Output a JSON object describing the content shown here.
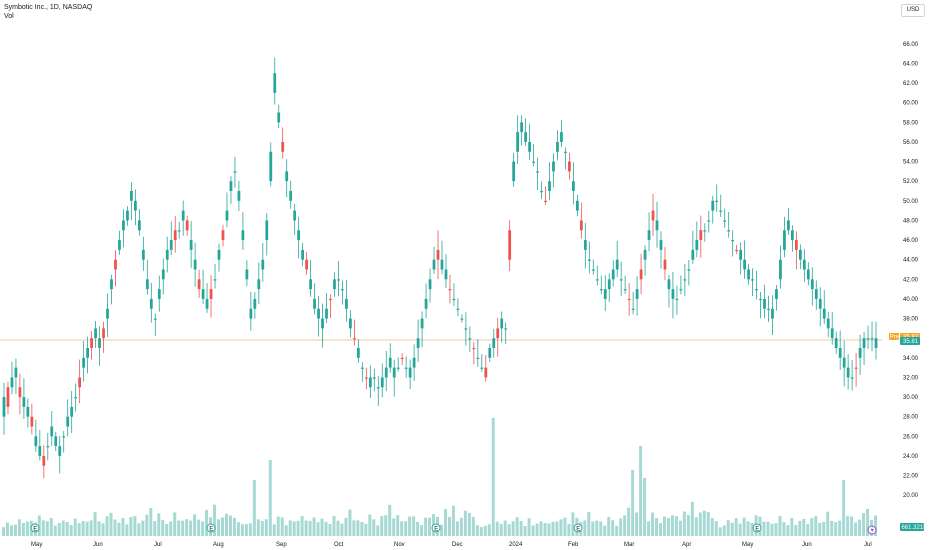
{
  "header": {
    "title": "Symbotic Inc., 1D, NASDAQ",
    "volume_label": "Vol"
  },
  "currency": "USD",
  "price_badges": {
    "pre_label": "Pre",
    "pre_value": "35.82",
    "last_value": "35.81"
  },
  "volume_badge": "661.321K",
  "colors": {
    "up": "#26a69a",
    "down": "#ef5350",
    "vol_up": "#a6d9d3",
    "vol_down": "#f7b7b4",
    "pre_badge": "#f5a623",
    "last_badge": "#26a69a",
    "price_line": "#f0c9a3"
  },
  "chart_data": {
    "type": "candlestick",
    "title": "Symbotic Inc., 1D, NASDAQ",
    "currency": "USD",
    "x_ticks": [
      "May",
      "Jun",
      "Jul",
      "Aug",
      "Sep",
      "Oct",
      "Nov",
      "Dec",
      "2024",
      "Feb",
      "Mar",
      "Apr",
      "May",
      "Jun",
      "Jul"
    ],
    "y_ticks": [
      "20.00",
      "22.00",
      "24.00",
      "26.00",
      "28.00",
      "30.00",
      "32.00",
      "34.00",
      "36.00",
      "38.00",
      "40.00",
      "42.00",
      "44.00",
      "46.00",
      "48.00",
      "50.00",
      "52.00",
      "54.00",
      "56.00",
      "58.00",
      "60.00",
      "62.00",
      "64.00",
      "66.00"
    ],
    "ylim": [
      19,
      67
    ],
    "last_price": 35.81,
    "pre_market_price": 35.82,
    "event_markers": [
      "E",
      "E",
      "E",
      "E",
      "E"
    ],
    "close_path": [
      [
        28,
        30
      ],
      [
        29,
        31
      ],
      [
        31,
        32
      ],
      [
        32,
        33
      ],
      [
        30,
        31
      ],
      [
        29,
        30
      ],
      [
        28,
        29
      ],
      [
        27,
        28
      ],
      [
        25,
        26
      ],
      [
        24,
        25
      ],
      [
        23,
        24
      ],
      [
        25,
        25
      ],
      [
        26,
        27
      ],
      [
        25,
        26
      ],
      [
        24,
        25
      ],
      [
        26,
        26
      ],
      [
        27,
        28
      ],
      [
        28,
        29
      ],
      [
        30,
        30
      ],
      [
        31,
        32
      ],
      [
        33,
        34
      ],
      [
        34,
        35
      ],
      [
        35,
        36
      ],
      [
        36,
        37
      ],
      [
        35,
        36
      ],
      [
        36,
        37
      ],
      [
        38,
        39
      ],
      [
        41,
        42
      ],
      [
        43,
        44
      ],
      [
        45,
        46
      ],
      [
        47,
        48
      ],
      [
        48,
        49
      ],
      [
        50,
        51
      ],
      [
        49,
        50
      ],
      [
        47,
        48
      ],
      [
        44,
        45
      ],
      [
        41,
        42
      ],
      [
        39,
        40
      ],
      [
        38,
        38
      ],
      [
        40,
        41
      ],
      [
        42,
        43
      ],
      [
        44,
        45
      ],
      [
        45,
        46
      ],
      [
        46,
        47
      ],
      [
        47,
        47
      ],
      [
        48,
        49
      ],
      [
        47,
        48
      ],
      [
        45,
        46
      ],
      [
        43,
        44
      ],
      [
        41,
        42
      ],
      [
        40,
        41
      ],
      [
        39,
        40
      ],
      [
        40,
        41
      ],
      [
        42,
        42
      ],
      [
        44,
        45
      ],
      [
        46,
        47
      ],
      [
        48,
        49
      ],
      [
        51,
        52
      ],
      [
        53,
        53
      ],
      [
        50,
        51
      ],
      [
        46,
        47
      ],
      [
        42,
        43
      ],
      [
        38,
        39
      ],
      [
        39,
        40
      ],
      [
        41,
        42
      ],
      [
        43,
        44
      ],
      [
        46,
        48
      ],
      [
        52,
        55
      ],
      [
        61,
        63
      ],
      [
        58,
        59
      ],
      [
        55,
        56
      ],
      [
        52,
        53
      ],
      [
        50,
        51
      ],
      [
        48,
        49
      ],
      [
        46,
        47
      ],
      [
        44,
        45
      ],
      [
        43,
        44
      ],
      [
        41,
        42
      ],
      [
        39,
        40
      ],
      [
        38,
        39
      ],
      [
        37,
        38
      ],
      [
        38,
        39
      ],
      [
        40,
        40
      ],
      [
        41,
        42
      ],
      [
        42,
        42
      ],
      [
        41,
        41
      ],
      [
        39,
        40
      ],
      [
        37,
        38
      ],
      [
        36,
        36
      ],
      [
        34,
        35
      ],
      [
        33,
        33
      ],
      [
        32,
        32
      ],
      [
        31,
        32
      ],
      [
        32,
        32
      ],
      [
        31,
        31
      ],
      [
        31,
        32
      ],
      [
        32,
        33
      ],
      [
        33,
        34
      ],
      [
        32,
        33
      ],
      [
        33,
        33
      ],
      [
        34,
        34
      ],
      [
        33,
        33
      ],
      [
        32,
        33
      ],
      [
        33,
        34
      ],
      [
        35,
        36
      ],
      [
        37,
        38
      ],
      [
        39,
        40
      ],
      [
        41,
        42
      ],
      [
        43,
        44
      ],
      [
        44,
        45
      ],
      [
        43,
        44
      ],
      [
        42,
        43
      ],
      [
        41,
        41
      ],
      [
        40,
        40
      ],
      [
        39,
        39
      ],
      [
        38,
        38
      ],
      [
        37,
        37
      ],
      [
        36,
        36
      ],
      [
        35,
        35
      ],
      [
        34,
        34
      ],
      [
        33,
        33
      ],
      [
        32,
        33
      ],
      [
        34,
        35
      ],
      [
        35,
        36
      ],
      [
        36,
        37
      ],
      [
        37,
        38
      ],
      [
        37,
        37
      ],
      [
        44,
        47
      ],
      [
        52,
        54
      ],
      [
        55,
        57
      ],
      [
        57,
        58
      ],
      [
        56,
        57
      ],
      [
        55,
        56
      ],
      [
        54,
        54
      ],
      [
        53,
        53
      ],
      [
        51,
        51
      ],
      [
        50,
        50
      ],
      [
        51,
        52
      ],
      [
        53,
        54
      ],
      [
        55,
        56
      ],
      [
        56,
        57
      ],
      [
        55,
        55
      ],
      [
        53,
        54
      ],
      [
        51,
        52
      ],
      [
        49,
        50
      ],
      [
        47,
        48
      ],
      [
        45,
        46
      ],
      [
        44,
        44
      ],
      [
        43,
        43
      ],
      [
        42,
        42
      ],
      [
        41,
        41
      ],
      [
        40,
        41
      ],
      [
        41,
        42
      ],
      [
        42,
        43
      ],
      [
        43,
        44
      ],
      [
        42,
        42
      ],
      [
        41,
        41
      ],
      [
        40,
        40
      ],
      [
        39,
        39
      ],
      [
        40,
        41
      ],
      [
        42,
        43
      ],
      [
        44,
        45
      ],
      [
        46,
        47
      ],
      [
        48,
        49
      ],
      [
        47,
        48
      ],
      [
        45,
        46
      ],
      [
        43,
        44
      ],
      [
        41,
        42
      ],
      [
        40,
        41
      ],
      [
        40,
        40
      ],
      [
        41,
        41
      ],
      [
        42,
        42
      ],
      [
        43,
        43
      ],
      [
        44,
        45
      ],
      [
        45,
        46
      ],
      [
        46,
        47
      ],
      [
        47,
        47
      ],
      [
        48,
        48
      ],
      [
        49,
        50
      ],
      [
        50,
        50
      ],
      [
        49,
        49
      ],
      [
        48,
        48
      ],
      [
        47,
        47
      ],
      [
        46,
        46
      ],
      [
        45,
        45
      ],
      [
        44,
        45
      ],
      [
        43,
        44
      ],
      [
        42,
        43
      ],
      [
        42,
        42
      ],
      [
        41,
        41
      ],
      [
        40,
        40
      ],
      [
        39,
        40
      ],
      [
        39,
        39
      ],
      [
        38,
        39
      ],
      [
        40,
        41
      ],
      [
        42,
        44
      ],
      [
        45,
        47
      ],
      [
        47,
        48
      ],
      [
        46,
        47
      ],
      [
        45,
        46
      ],
      [
        44,
        45
      ],
      [
        43,
        44
      ],
      [
        42,
        43
      ],
      [
        41,
        42
      ],
      [
        40,
        41
      ],
      [
        39,
        40
      ],
      [
        38,
        39
      ],
      [
        37,
        38
      ],
      [
        36,
        37
      ],
      [
        35,
        36
      ],
      [
        34,
        35
      ],
      [
        33,
        34
      ],
      [
        32,
        33
      ],
      [
        32,
        32
      ],
      [
        33,
        33
      ],
      [
        34,
        35
      ],
      [
        35,
        36
      ],
      [
        36,
        36
      ],
      [
        36,
        36
      ],
      [
        35,
        36
      ]
    ],
    "volume_path": [
      [
        0,
        1,
        1,
        1,
        2,
        1,
        2,
        1,
        1,
        3,
        2,
        1,
        2,
        1,
        1,
        2,
        1,
        1,
        2,
        1,
        2,
        2,
        1,
        3,
        2,
        1,
        2,
        4,
        2,
        1
      ],
      [
        2,
        1,
        3,
        2,
        1,
        2,
        3,
        5,
        2,
        3,
        2,
        1,
        2,
        3,
        2,
        1,
        2,
        2,
        3,
        2,
        1,
        4,
        3,
        6,
        2,
        3,
        4,
        3,
        2,
        1
      ]
    ]
  }
}
